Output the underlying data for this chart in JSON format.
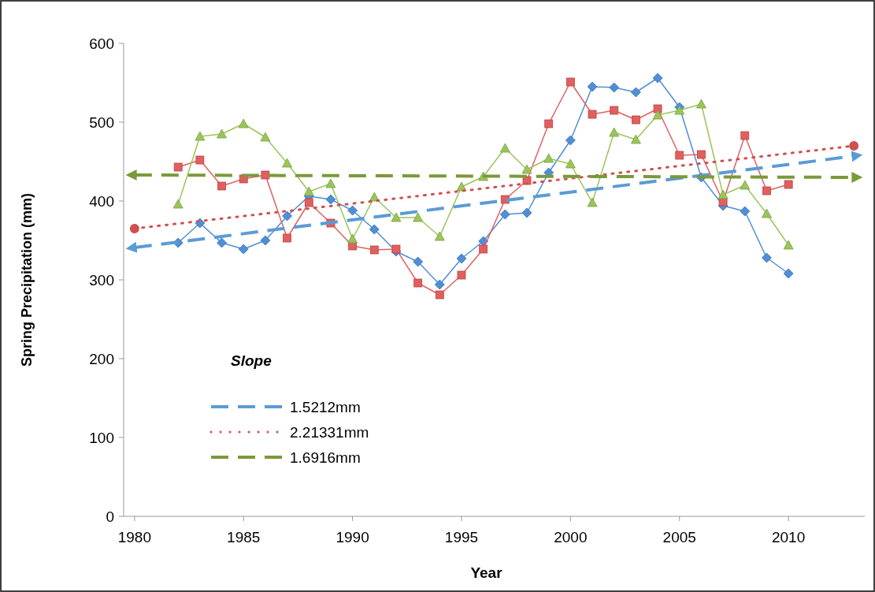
{
  "chart_data": {
    "type": "line",
    "xlabel": "Year",
    "ylabel": "Spring Precipitation (mm)",
    "legend_title": "Slope",
    "legend": "bottom left",
    "grid": false,
    "xlim": [
      1979.5,
      2013.5
    ],
    "xticks": [
      1980,
      1985,
      1990,
      1995,
      2000,
      2005,
      2010
    ],
    "ylim": [
      0,
      600
    ],
    "yticks": [
      0,
      100,
      200,
      300,
      400,
      500,
      600
    ],
    "series": [
      {
        "color": "#4f8fd6",
        "marker": "diamond",
        "line_style": "solid",
        "x": [
          1982,
          1983,
          1984,
          1985,
          1986,
          1987,
          1988,
          1989,
          1990,
          1991,
          1992,
          1993,
          1994,
          1995,
          1996,
          1997,
          1998,
          1999,
          2000,
          2001,
          2002,
          2003,
          2004,
          2005,
          2006,
          2007,
          2008,
          2009,
          2010
        ],
        "values": [
          347,
          372,
          347,
          339,
          350,
          381,
          406,
          402,
          388,
          364,
          336,
          323,
          294,
          327,
          349,
          383,
          385,
          436,
          477,
          545,
          544,
          538,
          556,
          519,
          430,
          394,
          387,
          328,
          308
        ]
      },
      {
        "color": "#e06060",
        "marker": "square",
        "line_style": "solid",
        "x": [
          1982,
          1983,
          1984,
          1985,
          1986,
          1987,
          1988,
          1989,
          1990,
          1991,
          1992,
          1993,
          1994,
          1995,
          1996,
          1997,
          1998,
          1999,
          2000,
          2001,
          2002,
          2003,
          2004,
          2005,
          2006,
          2007,
          2008,
          2009,
          2010
        ],
        "values": [
          443,
          452,
          419,
          428,
          433,
          353,
          398,
          372,
          343,
          338,
          339,
          296,
          281,
          306,
          339,
          402,
          426,
          498,
          551,
          510,
          515,
          503,
          517,
          458,
          459,
          399,
          483,
          413,
          421
        ]
      },
      {
        "color": "#9bc55a",
        "marker": "triangle",
        "line_style": "solid",
        "x": [
          1982,
          1983,
          1984,
          1985,
          1986,
          1987,
          1988,
          1989,
          1990,
          1991,
          1992,
          1993,
          1994,
          1995,
          1996,
          1997,
          1998,
          1999,
          2000,
          2001,
          2002,
          2003,
          2004,
          2005,
          2006,
          2007,
          2008,
          2009,
          2010
        ],
        "values": [
          396,
          482,
          485,
          498,
          481,
          448,
          412,
          422,
          352,
          405,
          379,
          379,
          355,
          418,
          431,
          467,
          440,
          454,
          447,
          398,
          487,
          478,
          509,
          515,
          523,
          408,
          420,
          384,
          344
        ]
      },
      {
        "name": "1.5212mm",
        "color": "#5b9bd5",
        "marker": "none",
        "line_style": "dashed",
        "x": [
          1980,
          2013
        ],
        "values": [
          341,
          457
        ]
      },
      {
        "name": "2.21331mm",
        "color": "#d05050",
        "marker": "none",
        "line_style": "dotted",
        "x": [
          1980,
          2013
        ],
        "values": [
          365,
          470
        ]
      },
      {
        "name": "1.6916mm",
        "color": "#7a9a3a",
        "marker": "none",
        "line_style": "dashed",
        "x": [
          1980,
          2013
        ],
        "values": [
          433,
          430
        ]
      }
    ]
  }
}
